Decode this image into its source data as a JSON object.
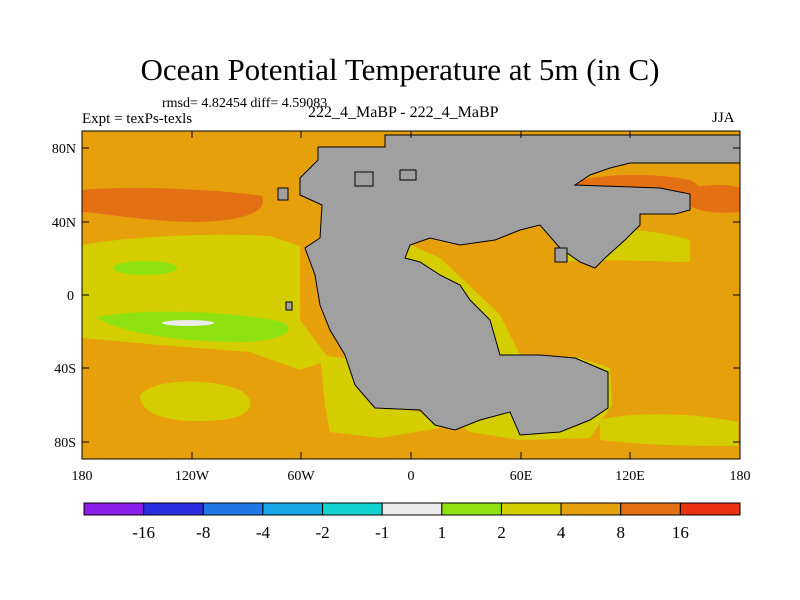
{
  "plot": {
    "title": "Ocean Potential Temperature at 5m (in C)",
    "stats": "rmsd= 4.82454 diff= 4.59083",
    "expt": "Expt = texPs-texls",
    "case": "222_4_MaBP - 222_4_MaBP",
    "season": "JJA"
  },
  "axes": {
    "x_ticks": [
      "180",
      "120W",
      "60W",
      "0",
      "60E",
      "120E",
      "180"
    ],
    "y_ticks": [
      "80N",
      "40N",
      "0",
      "40S",
      "80S"
    ]
  },
  "colorbar": {
    "labels": [
      "-16",
      "-8",
      "-4",
      "-2",
      "-1",
      "1",
      "2",
      "4",
      "8",
      "16"
    ],
    "colors": [
      "#8a1ee8",
      "#2a2ee0",
      "#1f78e6",
      "#17a6e6",
      "#12d2d2",
      "#ececec",
      "#8ee212",
      "#d4ce00",
      "#e6a00c",
      "#e47014",
      "#e83212"
    ]
  },
  "map_colors": {
    "land": "#a0a0a0",
    "range_2_4": "#d4ce00",
    "range_4_8": "#e6a00c",
    "range_8_16": "#e47014",
    "range_1_2": "#8ee212",
    "range_-1_1": "#ececec"
  }
}
